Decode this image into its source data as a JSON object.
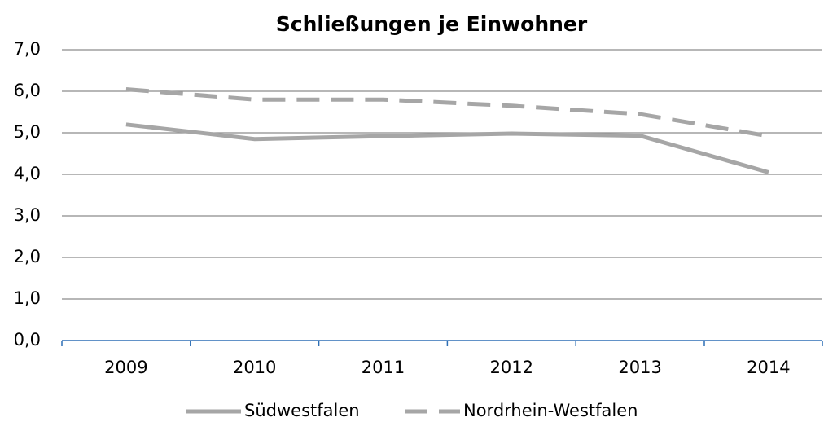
{
  "chart_data": {
    "type": "line",
    "title": "Schließungen je Einwohner",
    "categories": [
      "2009",
      "2010",
      "2011",
      "2012",
      "2013",
      "2014"
    ],
    "series": [
      {
        "name": "Südwestfalen",
        "color": "#a6a6a6",
        "dash": false,
        "values": [
          5.2,
          4.85,
          4.92,
          4.98,
          4.93,
          4.05
        ]
      },
      {
        "name": "Nordrhein-Westfalen",
        "color": "#a6a6a6",
        "dash": true,
        "values": [
          6.05,
          5.8,
          5.8,
          5.65,
          5.45,
          4.92
        ]
      }
    ],
    "ylim": [
      0,
      7
    ],
    "yticks": [
      {
        "value": 0,
        "label": "0,0"
      },
      {
        "value": 1,
        "label": "1,0"
      },
      {
        "value": 2,
        "label": "2,0"
      },
      {
        "value": 3,
        "label": "3,0"
      },
      {
        "value": 4,
        "label": "4,0"
      },
      {
        "value": 5,
        "label": "5,0"
      },
      {
        "value": 6,
        "label": "6,0"
      },
      {
        "value": 7,
        "label": "7,0"
      }
    ],
    "grid": true,
    "legend": "bottom"
  }
}
